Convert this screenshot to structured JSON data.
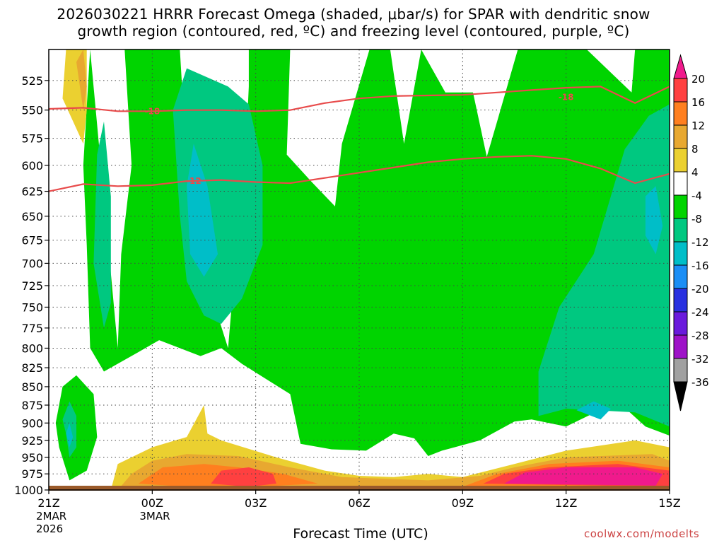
{
  "title": {
    "line1": "2026030221 HRRR Forecast Omega (shaded, μbar/s) for SPAR with dendritic snow",
    "line2": "growth region (contoured, red, ºC) and freezing level (contoured, purple, ºC)"
  },
  "credit": "coolwx.com/modelts",
  "chart_data": {
    "type": "heatmap",
    "xlabel": "Forecast Time (UTC)",
    "x_ticks": [
      {
        "hour": 0,
        "label": "21Z",
        "sub1": "2MAR",
        "sub2": "2026"
      },
      {
        "hour": 3,
        "label": "00Z",
        "sub1": "3MAR",
        "sub2": ""
      },
      {
        "hour": 6,
        "label": "03Z",
        "sub1": "",
        "sub2": ""
      },
      {
        "hour": 9,
        "label": "06Z",
        "sub1": "",
        "sub2": ""
      },
      {
        "hour": 12,
        "label": "09Z",
        "sub1": "",
        "sub2": ""
      },
      {
        "hour": 15,
        "label": "12Z",
        "sub1": "",
        "sub2": ""
      },
      {
        "hour": 18,
        "label": "15Z",
        "sub1": "",
        "sub2": ""
      }
    ],
    "x_range_hours": [
      0,
      18
    ],
    "y_ticks": [
      525,
      550,
      575,
      600,
      625,
      650,
      675,
      700,
      725,
      750,
      775,
      800,
      825,
      850,
      875,
      900,
      925,
      950,
      975,
      1000
    ],
    "y_range_hPa": [
      500,
      1000
    ],
    "y_scale": "log-pressure",
    "grid": true,
    "colorbar": {
      "placement": "right",
      "labels": [
        "20",
        "16",
        "12",
        "8",
        "4",
        "-4",
        "-8",
        "-12",
        "-16",
        "-20",
        "-24",
        "-28",
        "-32",
        "-36"
      ],
      "colors": [
        "#f01a8c",
        "#ff4040",
        "#ff7f1f",
        "#e8a830",
        "#ebd030",
        "#ffffff",
        "#00d400",
        "#00c880",
        "#00bec8",
        "#1b8ef5",
        "#2830e0",
        "#6a1adc",
        "#9e12c8",
        "#a0a0a0",
        "#000000"
      ]
    },
    "omega_regions": [
      {
        "level": "-4",
        "color": "#00d400",
        "pts": [
          [
            1.2,
            500
          ],
          [
            1.0,
            600
          ],
          [
            1.1,
            680
          ],
          [
            1.2,
            800
          ],
          [
            1.6,
            830
          ],
          [
            2.6,
            805
          ],
          [
            3.2,
            790
          ],
          [
            4.4,
            810
          ],
          [
            5.0,
            800
          ],
          [
            5.6,
            820
          ],
          [
            7.0,
            860
          ],
          [
            7.3,
            930
          ],
          [
            8.2,
            938
          ],
          [
            9.2,
            940
          ],
          [
            10.0,
            915
          ],
          [
            10.6,
            922
          ],
          [
            11.0,
            948
          ],
          [
            11.4,
            940
          ],
          [
            12.5,
            925
          ],
          [
            13.5,
            898
          ],
          [
            14.0,
            895
          ],
          [
            15.0,
            905
          ],
          [
            16.5,
            870
          ],
          [
            17.3,
            905
          ],
          [
            18.0,
            918
          ],
          [
            18.0,
            500
          ],
          [
            17.0,
            500
          ],
          [
            16.9,
            535
          ],
          [
            15.6,
            500
          ],
          [
            14.1,
            500
          ],
          [
            14.2,
            770
          ],
          [
            14.6,
            690
          ],
          [
            14.8,
            600
          ],
          [
            14.9,
            500
          ],
          [
            13.6,
            500
          ],
          [
            13.0,
            560
          ],
          [
            12.7,
            592
          ],
          [
            12.3,
            535
          ],
          [
            11.5,
            535
          ],
          [
            10.8,
            500
          ],
          [
            10.3,
            580
          ],
          [
            9.9,
            500
          ],
          [
            9.3,
            500
          ],
          [
            8.5,
            580
          ],
          [
            8.3,
            640
          ],
          [
            7.6,
            615
          ],
          [
            6.9,
            590
          ],
          [
            7.0,
            500
          ],
          [
            5.8,
            500
          ],
          [
            5.8,
            530
          ],
          [
            5.7,
            595
          ],
          [
            6.0,
            650
          ],
          [
            5.3,
            750
          ],
          [
            5.2,
            800
          ],
          [
            4.9,
            760
          ],
          [
            4.6,
            690
          ],
          [
            4.2,
            660
          ],
          [
            4.0,
            600
          ],
          [
            3.8,
            500
          ],
          [
            2.2,
            500
          ],
          [
            2.4,
            600
          ],
          [
            2.1,
            690
          ],
          [
            2.0,
            800
          ],
          [
            1.2,
            500
          ]
        ]
      },
      {
        "level": "-4",
        "color": "#00d400",
        "pts": [
          [
            0.3,
            935
          ],
          [
            0.2,
            900
          ],
          [
            0.4,
            850
          ],
          [
            0.8,
            835
          ],
          [
            1.3,
            860
          ],
          [
            1.4,
            920
          ],
          [
            1.1,
            970
          ],
          [
            0.6,
            985
          ],
          [
            0.3,
            935
          ]
        ]
      },
      {
        "level": "-8",
        "color": "#00c880",
        "pts": [
          [
            1.3,
            700
          ],
          [
            1.4,
            590
          ],
          [
            1.6,
            560
          ],
          [
            1.8,
            630
          ],
          [
            1.8,
            745
          ],
          [
            1.6,
            775
          ],
          [
            1.3,
            700
          ]
        ]
      },
      {
        "level": "-8",
        "color": "#00c880",
        "pts": [
          [
            3.6,
            550
          ],
          [
            4.0,
            515
          ],
          [
            5.2,
            530
          ],
          [
            5.8,
            545
          ],
          [
            6.2,
            600
          ],
          [
            6.2,
            680
          ],
          [
            5.6,
            740
          ],
          [
            5.0,
            770
          ],
          [
            4.5,
            760
          ],
          [
            4.0,
            720
          ],
          [
            3.8,
            650
          ],
          [
            3.6,
            550
          ]
        ]
      },
      {
        "level": "-8",
        "color": "#00c880",
        "pts": [
          [
            14.2,
            830
          ],
          [
            14.8,
            750
          ],
          [
            15.8,
            690
          ],
          [
            16.7,
            585
          ],
          [
            17.4,
            555
          ],
          [
            18.0,
            545
          ],
          [
            18.0,
            905
          ],
          [
            17.0,
            885
          ],
          [
            15.0,
            880
          ],
          [
            14.2,
            890
          ],
          [
            14.2,
            830
          ]
        ]
      },
      {
        "level": "-8",
        "color": "#00c880",
        "pts": [
          [
            0.5,
            915
          ],
          [
            0.4,
            895
          ],
          [
            0.6,
            870
          ],
          [
            0.8,
            890
          ],
          [
            0.8,
            935
          ],
          [
            0.6,
            950
          ],
          [
            0.5,
            915
          ]
        ]
      },
      {
        "level": "-12",
        "color": "#00bec8",
        "pts": [
          [
            4.0,
            620
          ],
          [
            4.2,
            580
          ],
          [
            4.6,
            620
          ],
          [
            4.9,
            690
          ],
          [
            4.5,
            715
          ],
          [
            4.1,
            690
          ],
          [
            4.0,
            620
          ]
        ]
      },
      {
        "level": "-12",
        "color": "#00bec8",
        "pts": [
          [
            17.3,
            630
          ],
          [
            17.6,
            620
          ],
          [
            17.8,
            660
          ],
          [
            17.6,
            690
          ],
          [
            17.3,
            670
          ],
          [
            17.3,
            630
          ]
        ]
      },
      {
        "level": "-12",
        "color": "#00bec8",
        "pts": [
          [
            15.3,
            882
          ],
          [
            15.8,
            870
          ],
          [
            16.3,
            880
          ],
          [
            16.0,
            895
          ],
          [
            15.3,
            882
          ]
        ]
      },
      {
        "level": "-12",
        "color": "#00bec8",
        "pts": [
          [
            0.5,
            915
          ],
          [
            0.6,
            900
          ],
          [
            0.7,
            920
          ],
          [
            0.6,
            935
          ],
          [
            0.5,
            915
          ]
        ]
      },
      {
        "level": "4",
        "color": "#ebd030",
        "pts": [
          [
            0.5,
            500
          ],
          [
            0.4,
            540
          ],
          [
            1.0,
            580
          ],
          [
            1.1,
            550
          ],
          [
            1.1,
            500
          ],
          [
            0.5,
            500
          ]
        ]
      },
      {
        "level": "4",
        "color": "#ebd030",
        "pts": [
          [
            1.8,
            1000
          ],
          [
            2.0,
            960
          ],
          [
            3.0,
            935
          ],
          [
            4.0,
            920
          ],
          [
            4.5,
            875
          ],
          [
            4.6,
            915
          ],
          [
            5.0,
            925
          ],
          [
            6.6,
            950
          ],
          [
            8.0,
            970
          ],
          [
            9.0,
            978
          ],
          [
            10.0,
            980
          ],
          [
            11.0,
            975
          ],
          [
            12.0,
            980
          ],
          [
            13.5,
            960
          ],
          [
            15.0,
            940
          ],
          [
            17.0,
            925
          ],
          [
            18.0,
            935
          ],
          [
            18.0,
            1000
          ],
          [
            1.8,
            1000
          ]
        ]
      },
      {
        "level": "8",
        "color": "#e8a830",
        "pts": [
          [
            0.8,
            510
          ],
          [
            1.0,
            500
          ],
          [
            1.1,
            530
          ],
          [
            1.0,
            550
          ],
          [
            0.8,
            510
          ]
        ]
      },
      {
        "level": "8",
        "color": "#e8a830",
        "pts": [
          [
            2.0,
            1000
          ],
          [
            2.4,
            975
          ],
          [
            3.0,
            955
          ],
          [
            4.0,
            945
          ],
          [
            5.5,
            948
          ],
          [
            7.0,
            965
          ],
          [
            8.5,
            980
          ],
          [
            11.0,
            985
          ],
          [
            12.5,
            978
          ],
          [
            13.5,
            965
          ],
          [
            15.0,
            950
          ],
          [
            17.5,
            945
          ],
          [
            18.0,
            955
          ],
          [
            18.0,
            1000
          ],
          [
            2.0,
            1000
          ]
        ]
      },
      {
        "level": "12",
        "color": "#ff7f1f",
        "pts": [
          [
            2.6,
            990
          ],
          [
            3.3,
            965
          ],
          [
            4.5,
            960
          ],
          [
            5.5,
            965
          ],
          [
            6.8,
            975
          ],
          [
            7.8,
            990
          ],
          [
            6.0,
            995
          ],
          [
            4.0,
            995
          ],
          [
            2.6,
            990
          ]
        ]
      },
      {
        "level": "12",
        "color": "#ff7f1f",
        "pts": [
          [
            12.0,
            995
          ],
          [
            13.0,
            975
          ],
          [
            14.5,
            960
          ],
          [
            16.5,
            955
          ],
          [
            18.0,
            965
          ],
          [
            18.0,
            995
          ],
          [
            12.0,
            995
          ]
        ]
      },
      {
        "level": "16",
        "color": "#ff4040",
        "pts": [
          [
            4.7,
            990
          ],
          [
            5.0,
            970
          ],
          [
            5.8,
            965
          ],
          [
            6.5,
            975
          ],
          [
            6.6,
            990
          ],
          [
            5.8,
            995
          ],
          [
            4.7,
            990
          ]
        ]
      },
      {
        "level": "16",
        "color": "#ff4040",
        "pts": [
          [
            12.6,
            990
          ],
          [
            13.2,
            975
          ],
          [
            14.5,
            965
          ],
          [
            16.5,
            960
          ],
          [
            18.0,
            970
          ],
          [
            18.0,
            995
          ],
          [
            12.6,
            990
          ]
        ]
      },
      {
        "level": "20",
        "color": "#f01a8c",
        "pts": [
          [
            13.2,
            990
          ],
          [
            13.8,
            973
          ],
          [
            15.0,
            965
          ],
          [
            17.0,
            965
          ],
          [
            17.8,
            975
          ],
          [
            17.6,
            993
          ],
          [
            13.2,
            990
          ]
        ]
      }
    ],
    "contours": [
      {
        "label": "-18",
        "color": "#e84b4b",
        "label_at": [
          [
            3.0,
            551
          ],
          [
            15.0,
            539
          ]
        ],
        "pts": [
          [
            0,
            549
          ],
          [
            1,
            548
          ],
          [
            2,
            551
          ],
          [
            3,
            551
          ],
          [
            4,
            550
          ],
          [
            5,
            550
          ],
          [
            6,
            551
          ],
          [
            7,
            550
          ],
          [
            8,
            544
          ],
          [
            9,
            540
          ],
          [
            10,
            538
          ],
          [
            11,
            537.5
          ],
          [
            12,
            537
          ],
          [
            13,
            535
          ],
          [
            14,
            533
          ],
          [
            15,
            531
          ],
          [
            16,
            530
          ],
          [
            17,
            544
          ],
          [
            18,
            530
          ]
        ]
      },
      {
        "label": "-12",
        "color": "#e84b4b",
        "label_at": [
          [
            4.2,
            615
          ]
        ],
        "pts": [
          [
            0,
            625
          ],
          [
            1,
            618
          ],
          [
            2,
            620
          ],
          [
            3,
            619
          ],
          [
            4,
            615
          ],
          [
            5,
            614
          ],
          [
            6,
            616
          ],
          [
            7,
            617
          ],
          [
            8,
            612
          ],
          [
            9,
            607
          ],
          [
            10,
            602
          ],
          [
            11,
            597
          ],
          [
            12,
            594
          ],
          [
            13,
            592
          ],
          [
            14,
            591
          ],
          [
            15,
            594
          ],
          [
            16,
            603
          ],
          [
            17,
            617
          ],
          [
            18,
            608
          ]
        ]
      }
    ]
  }
}
